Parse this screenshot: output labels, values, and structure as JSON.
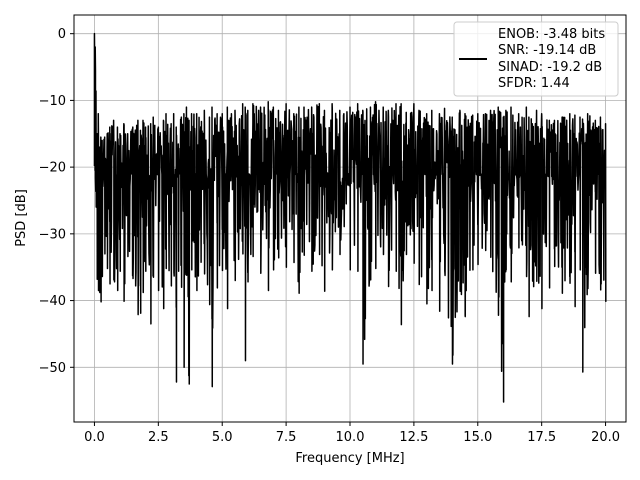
{
  "chart_data": {
    "type": "line",
    "xlabel": "Frequency [MHz]",
    "ylabel": "PSD [dB]",
    "xlim": [
      -0.8,
      20.8
    ],
    "ylim": [
      -58.2,
      2.8
    ],
    "xticks": [
      0.0,
      2.5,
      5.0,
      7.5,
      10.0,
      12.5,
      15.0,
      17.5,
      20.0
    ],
    "xtick_labels": [
      "0.0",
      "2.5",
      "5.0",
      "7.5",
      "10.0",
      "12.5",
      "15.0",
      "17.5",
      "20.0"
    ],
    "yticks": [
      0,
      -10,
      -20,
      -30,
      -40,
      -50
    ],
    "ytick_labels": [
      "0",
      "−10",
      "−20",
      "−30",
      "−40",
      "−50"
    ],
    "grid": true,
    "legend_position": "top-right",
    "series": [
      {
        "name": "ENOB: -3.48 bits\nSNR: -19.14 dB\nSINAD: -19.2 dB\nSFDR: 1.44",
        "legend_lines": [
          "ENOB: -3.48 bits",
          "SNR: -19.14 dB",
          "SINAD: -19.2 dB",
          "SFDR: 1.44"
        ],
        "color": "#000000",
        "x": [
          0.0,
          0.03,
          0.06,
          0.1,
          0.15,
          0.2,
          0.25,
          0.3,
          0.4,
          0.5,
          0.6,
          0.75,
          0.9,
          1.0,
          1.15,
          1.3,
          1.5,
          1.7,
          1.8,
          1.9,
          2.0,
          2.2,
          2.3,
          2.5,
          2.7,
          2.8,
          3.0,
          3.1,
          3.2,
          3.4,
          3.5,
          3.6,
          3.7,
          3.8,
          4.0,
          4.3,
          4.5,
          4.6,
          4.8,
          5.0,
          5.2,
          5.5,
          5.8,
          5.9,
          6.0,
          6.2,
          6.5,
          6.8,
          7.0,
          7.2,
          7.5,
          7.8,
          8.0,
          8.2,
          8.5,
          8.8,
          9.0,
          9.3,
          9.6,
          10.0,
          10.3,
          10.5,
          10.8,
          11.0,
          11.3,
          11.5,
          11.8,
          12.0,
          12.2,
          12.5,
          12.7,
          13.0,
          13.2,
          13.5,
          13.7,
          14.0,
          14.3,
          14.5,
          14.8,
          15.0,
          15.3,
          15.5,
          15.8,
          16.0,
          16.1,
          16.3,
          16.6,
          16.9,
          17.0,
          17.3,
          17.5,
          17.8,
          18.0,
          18.3,
          18.6,
          18.8,
          19.0,
          19.1,
          19.3,
          19.6,
          19.8,
          20.0
        ],
        "y_upper": [
          0.0,
          -2,
          -8.6,
          -15,
          -12,
          -17,
          -15.5,
          -16,
          -15.5,
          -15,
          -14,
          -13,
          -14,
          -15,
          -13.5,
          -15,
          -14,
          -13,
          -14.5,
          -13,
          -14,
          -13.5,
          -12.5,
          -14,
          -13,
          -12,
          -13.5,
          -12,
          -14,
          -12.5,
          -12,
          -11,
          -13,
          -12,
          -12,
          -11.5,
          -12.5,
          -11,
          -12,
          -12,
          -11,
          -11.5,
          -10.5,
          -11,
          -11.5,
          -10.5,
          -11,
          -10.2,
          -11,
          -11.5,
          -10.5,
          -12,
          -11,
          -11,
          -11,
          -10.5,
          -11.5,
          -10.5,
          -11.5,
          -11,
          -10.5,
          -11.5,
          -11,
          -10.2,
          -11,
          -11.5,
          -10.5,
          -10.5,
          -11.8,
          -10.5,
          -11.5,
          -12,
          -11.5,
          -12,
          -11.2,
          -12.5,
          -11.5,
          -12,
          -12.2,
          -12,
          -12,
          -11.5,
          -11,
          -12.5,
          -11.5,
          -11,
          -12,
          -11,
          -12.5,
          -11.5,
          -12,
          -13,
          -13,
          -12.5,
          -12,
          -12.2,
          -12.5,
          -12.8,
          -12,
          -13,
          -12.5,
          -13.5
        ],
        "y_lower": [
          -5,
          -21.6,
          -26,
          -36.8,
          -38.5,
          -38.8,
          -40.2,
          -36.4,
          -33,
          -35.2,
          -37.5,
          -36.9,
          -38.5,
          -35.6,
          -40.1,
          -33.4,
          -36.7,
          -42.1,
          -41.9,
          -38.8,
          -35.6,
          -43.5,
          -36.5,
          -38.5,
          -41.2,
          -35.2,
          -37.8,
          -35.8,
          -52.2,
          -38,
          -50,
          -36.2,
          -52.5,
          -35.4,
          -38.5,
          -36,
          -40.6,
          -52.9,
          -38.1,
          -35.5,
          -41.2,
          -37,
          -33,
          -49,
          -37.2,
          -33.4,
          -35.9,
          -38.5,
          -35.4,
          -33.6,
          -35,
          -34.3,
          -38.9,
          -33.2,
          -35.6,
          -33.1,
          -38.6,
          -35.4,
          -33.1,
          -35.4,
          -35.6,
          -49.5,
          -36.9,
          -35.2,
          -33.1,
          -37.9,
          -35.6,
          -43.6,
          -33.1,
          -34.4,
          -37.6,
          -40.5,
          -38.5,
          -41.6,
          -35.6,
          -49.5,
          -38.6,
          -42.4,
          -35.4,
          -34.6,
          -32.5,
          -33.5,
          -42.2,
          -55.2,
          -35.4,
          -37.2,
          -32.1,
          -36.4,
          -42.4,
          -37.1,
          -41.2,
          -38.1,
          -34.9,
          -38.9,
          -37.4,
          -40.9,
          -35.4,
          -50.7,
          -38.2,
          -35.9,
          -38.4,
          -40.2
        ]
      }
    ]
  }
}
